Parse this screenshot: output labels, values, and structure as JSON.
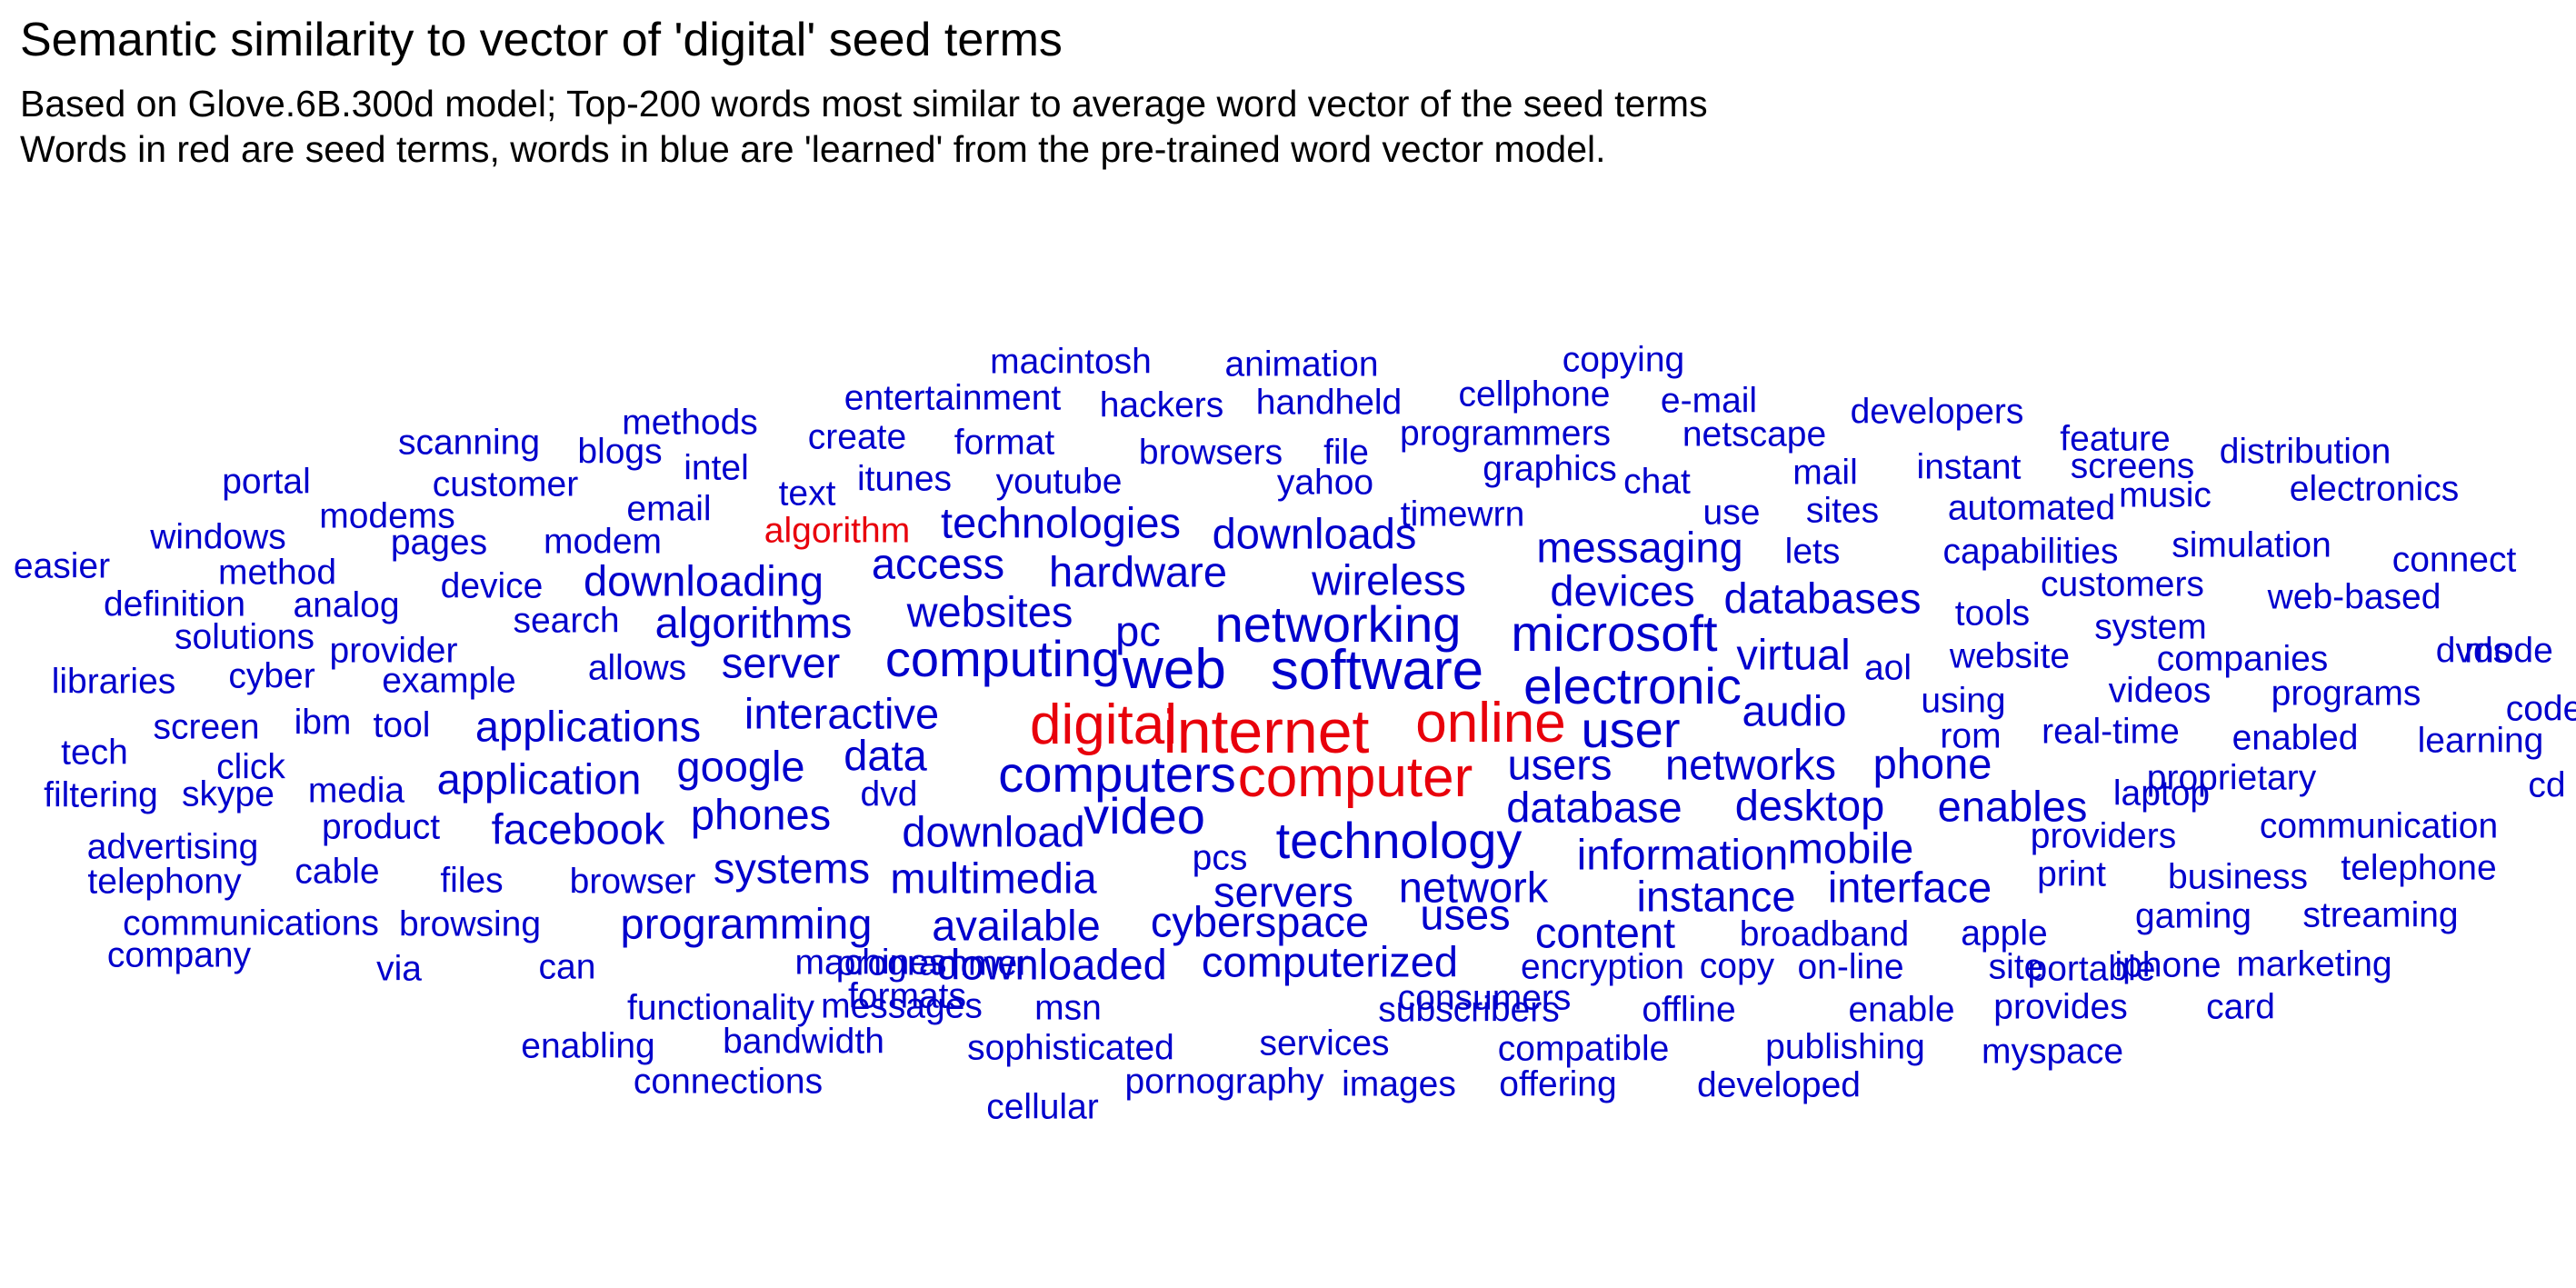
{
  "chart_data": {
    "type": "wordcloud",
    "title": "Semantic similarity to vector of 'digital' seed terms",
    "subtitle_lines": [
      "Based on Glove.6B.300d model; Top-200 words most similar to average word vector of the seed terms",
      "Words in red are seed terms, words in blue are 'learned' from the pre-trained word vector model."
    ],
    "colors": {
      "seed": "#e8000b",
      "learned": "#0000cc"
    },
    "words": [
      {
        "text": "macintosh",
        "weight": 2,
        "seed": false
      },
      {
        "text": "animation",
        "weight": 2,
        "seed": false
      },
      {
        "text": "copying",
        "weight": 2,
        "seed": false
      },
      {
        "text": "entertainment",
        "weight": 2,
        "seed": false
      },
      {
        "text": "hackers",
        "weight": 2,
        "seed": false
      },
      {
        "text": "handheld",
        "weight": 2,
        "seed": false
      },
      {
        "text": "cellphone",
        "weight": 2,
        "seed": false
      },
      {
        "text": "e-mail",
        "weight": 2,
        "seed": false
      },
      {
        "text": "developers",
        "weight": 2,
        "seed": false
      },
      {
        "text": "methods",
        "weight": 2,
        "seed": false
      },
      {
        "text": "scanning",
        "weight": 2,
        "seed": false
      },
      {
        "text": "blogs",
        "weight": 2,
        "seed": false
      },
      {
        "text": "create",
        "weight": 2,
        "seed": false
      },
      {
        "text": "format",
        "weight": 2,
        "seed": false
      },
      {
        "text": "browsers",
        "weight": 2,
        "seed": false
      },
      {
        "text": "file",
        "weight": 2,
        "seed": false
      },
      {
        "text": "programmers",
        "weight": 2,
        "seed": false
      },
      {
        "text": "netscape",
        "weight": 2,
        "seed": false
      },
      {
        "text": "feature",
        "weight": 2,
        "seed": false
      },
      {
        "text": "distribution",
        "weight": 2,
        "seed": false
      },
      {
        "text": "intel",
        "weight": 2,
        "seed": false
      },
      {
        "text": "instant",
        "weight": 2,
        "seed": false
      },
      {
        "text": "screens",
        "weight": 2,
        "seed": false
      },
      {
        "text": "graphics",
        "weight": 2,
        "seed": false
      },
      {
        "text": "mail",
        "weight": 2,
        "seed": false
      },
      {
        "text": "portal",
        "weight": 2,
        "seed": false
      },
      {
        "text": "customer",
        "weight": 2,
        "seed": false
      },
      {
        "text": "itunes",
        "weight": 2,
        "seed": false
      },
      {
        "text": "youtube",
        "weight": 2,
        "seed": false
      },
      {
        "text": "yahoo",
        "weight": 2,
        "seed": false
      },
      {
        "text": "chat",
        "weight": 2,
        "seed": false
      },
      {
        "text": "music",
        "weight": 2,
        "seed": false
      },
      {
        "text": "electronics",
        "weight": 2,
        "seed": false
      },
      {
        "text": "text",
        "weight": 2,
        "seed": false
      },
      {
        "text": "email",
        "weight": 2,
        "seed": false
      },
      {
        "text": "modems",
        "weight": 2,
        "seed": false
      },
      {
        "text": "use",
        "weight": 2,
        "seed": false
      },
      {
        "text": "sites",
        "weight": 2,
        "seed": false
      },
      {
        "text": "automated",
        "weight": 2,
        "seed": false
      },
      {
        "text": "timewrn",
        "weight": 2,
        "seed": false
      },
      {
        "text": "windows",
        "weight": 2,
        "seed": false
      },
      {
        "text": "algorithm",
        "weight": 2,
        "seed": true
      },
      {
        "text": "technologies",
        "weight": 3,
        "seed": false
      },
      {
        "text": "downloads",
        "weight": 3,
        "seed": false
      },
      {
        "text": "pages",
        "weight": 2,
        "seed": false
      },
      {
        "text": "modem",
        "weight": 2,
        "seed": false
      },
      {
        "text": "simulation",
        "weight": 2,
        "seed": false
      },
      {
        "text": "messaging",
        "weight": 3,
        "seed": false
      },
      {
        "text": "lets",
        "weight": 2,
        "seed": false
      },
      {
        "text": "capabilities",
        "weight": 2,
        "seed": false
      },
      {
        "text": "easier",
        "weight": 2,
        "seed": false
      },
      {
        "text": "connect",
        "weight": 2,
        "seed": false
      },
      {
        "text": "method",
        "weight": 2,
        "seed": false
      },
      {
        "text": "access",
        "weight": 3,
        "seed": false
      },
      {
        "text": "hardware",
        "weight": 3,
        "seed": false
      },
      {
        "text": "wireless",
        "weight": 3,
        "seed": false
      },
      {
        "text": "customers",
        "weight": 2,
        "seed": false
      },
      {
        "text": "downloading",
        "weight": 3,
        "seed": false
      },
      {
        "text": "device",
        "weight": 2,
        "seed": false
      },
      {
        "text": "devices",
        "weight": 3,
        "seed": false
      },
      {
        "text": "databases",
        "weight": 3,
        "seed": false
      },
      {
        "text": "web-based",
        "weight": 2,
        "seed": false
      },
      {
        "text": "definition",
        "weight": 2,
        "seed": false
      },
      {
        "text": "analog",
        "weight": 2,
        "seed": false
      },
      {
        "text": "tools",
        "weight": 2,
        "seed": false
      },
      {
        "text": "websites",
        "weight": 3,
        "seed": false
      },
      {
        "text": "search",
        "weight": 2,
        "seed": false
      },
      {
        "text": "algorithms",
        "weight": 3,
        "seed": false
      },
      {
        "text": "system",
        "weight": 2,
        "seed": false
      },
      {
        "text": "solutions",
        "weight": 2,
        "seed": false
      },
      {
        "text": "networking",
        "weight": 4,
        "seed": false
      },
      {
        "text": "pc",
        "weight": 3,
        "seed": false
      },
      {
        "text": "microsoft",
        "weight": 4,
        "seed": false
      },
      {
        "text": "provider",
        "weight": 2,
        "seed": false
      },
      {
        "text": "virtual",
        "weight": 3,
        "seed": false
      },
      {
        "text": "dvds",
        "weight": 2,
        "seed": false
      },
      {
        "text": "mode",
        "weight": 2,
        "seed": false
      },
      {
        "text": "computing",
        "weight": 4,
        "seed": false
      },
      {
        "text": "website",
        "weight": 2,
        "seed": false
      },
      {
        "text": "companies",
        "weight": 2,
        "seed": false
      },
      {
        "text": "libraries",
        "weight": 2,
        "seed": false
      },
      {
        "text": "cyber",
        "weight": 2,
        "seed": false
      },
      {
        "text": "allows",
        "weight": 2,
        "seed": false
      },
      {
        "text": "server",
        "weight": 3,
        "seed": false
      },
      {
        "text": "web",
        "weight": 5,
        "seed": false
      },
      {
        "text": "software",
        "weight": 5,
        "seed": false
      },
      {
        "text": "aol",
        "weight": 2,
        "seed": false
      },
      {
        "text": "example",
        "weight": 2,
        "seed": false
      },
      {
        "text": "programs",
        "weight": 2,
        "seed": false
      },
      {
        "text": "electronic",
        "weight": 4,
        "seed": false
      },
      {
        "text": "videos",
        "weight": 2,
        "seed": false
      },
      {
        "text": "using",
        "weight": 2,
        "seed": false
      },
      {
        "text": "code",
        "weight": 2,
        "seed": false
      },
      {
        "text": "interactive",
        "weight": 3,
        "seed": false
      },
      {
        "text": "audio",
        "weight": 3,
        "seed": false
      },
      {
        "text": "ibm",
        "weight": 2,
        "seed": false
      },
      {
        "text": "tool",
        "weight": 2,
        "seed": false
      },
      {
        "text": "screen",
        "weight": 2,
        "seed": false
      },
      {
        "text": "applications",
        "weight": 3,
        "seed": false
      },
      {
        "text": "digital",
        "weight": 5,
        "seed": true
      },
      {
        "text": "internet",
        "weight": 6,
        "seed": true
      },
      {
        "text": "online",
        "weight": 5,
        "seed": true
      },
      {
        "text": "user",
        "weight": 4,
        "seed": false
      },
      {
        "text": "rom",
        "weight": 2,
        "seed": false
      },
      {
        "text": "real-time",
        "weight": 2,
        "seed": false
      },
      {
        "text": "enabled",
        "weight": 2,
        "seed": false
      },
      {
        "text": "learning",
        "weight": 2,
        "seed": false
      },
      {
        "text": "tech",
        "weight": 2,
        "seed": false
      },
      {
        "text": "data",
        "weight": 3,
        "seed": false
      },
      {
        "text": "google",
        "weight": 3,
        "seed": false
      },
      {
        "text": "click",
        "weight": 2,
        "seed": false
      },
      {
        "text": "users",
        "weight": 3,
        "seed": false
      },
      {
        "text": "networks",
        "weight": 3,
        "seed": false
      },
      {
        "text": "phone",
        "weight": 3,
        "seed": false
      },
      {
        "text": "media",
        "weight": 2,
        "seed": false
      },
      {
        "text": "application",
        "weight": 3,
        "seed": false
      },
      {
        "text": "computers",
        "weight": 4,
        "seed": false
      },
      {
        "text": "computer",
        "weight": 5,
        "seed": true
      },
      {
        "text": "proprietary",
        "weight": 2,
        "seed": false
      },
      {
        "text": "cd",
        "weight": 2,
        "seed": false
      },
      {
        "text": "filtering",
        "weight": 2,
        "seed": false
      },
      {
        "text": "skype",
        "weight": 2,
        "seed": false
      },
      {
        "text": "dvd",
        "weight": 2,
        "seed": false
      },
      {
        "text": "laptop",
        "weight": 2,
        "seed": false
      },
      {
        "text": "database",
        "weight": 3,
        "seed": false
      },
      {
        "text": "desktop",
        "weight": 3,
        "seed": false
      },
      {
        "text": "enables",
        "weight": 3,
        "seed": false
      },
      {
        "text": "phones",
        "weight": 3,
        "seed": false
      },
      {
        "text": "video",
        "weight": 4,
        "seed": false
      },
      {
        "text": "product",
        "weight": 2,
        "seed": false
      },
      {
        "text": "facebook",
        "weight": 3,
        "seed": false
      },
      {
        "text": "download",
        "weight": 3,
        "seed": false
      },
      {
        "text": "communication",
        "weight": 2,
        "seed": false
      },
      {
        "text": "advertising",
        "weight": 2,
        "seed": false
      },
      {
        "text": "technology",
        "weight": 4,
        "seed": false
      },
      {
        "text": "providers",
        "weight": 2,
        "seed": false
      },
      {
        "text": "information",
        "weight": 3,
        "seed": false
      },
      {
        "text": "mobile",
        "weight": 3,
        "seed": false
      },
      {
        "text": "pcs",
        "weight": 2,
        "seed": false
      },
      {
        "text": "systems",
        "weight": 3,
        "seed": false
      },
      {
        "text": "cable",
        "weight": 2,
        "seed": false
      },
      {
        "text": "files",
        "weight": 2,
        "seed": false
      },
      {
        "text": "browser",
        "weight": 2,
        "seed": false
      },
      {
        "text": "print",
        "weight": 2,
        "seed": false
      },
      {
        "text": "business",
        "weight": 2,
        "seed": false
      },
      {
        "text": "telephone",
        "weight": 2,
        "seed": false
      },
      {
        "text": "telephony",
        "weight": 2,
        "seed": false
      },
      {
        "text": "multimedia",
        "weight": 3,
        "seed": false
      },
      {
        "text": "network",
        "weight": 3,
        "seed": false
      },
      {
        "text": "servers",
        "weight": 3,
        "seed": false
      },
      {
        "text": "instance",
        "weight": 3,
        "seed": false
      },
      {
        "text": "interface",
        "weight": 3,
        "seed": false
      },
      {
        "text": "gaming",
        "weight": 2,
        "seed": false
      },
      {
        "text": "streaming",
        "weight": 2,
        "seed": false
      },
      {
        "text": "communications",
        "weight": 2,
        "seed": false
      },
      {
        "text": "browsing",
        "weight": 2,
        "seed": false
      },
      {
        "text": "programming",
        "weight": 3,
        "seed": false
      },
      {
        "text": "available",
        "weight": 3,
        "seed": false
      },
      {
        "text": "cyberspace",
        "weight": 3,
        "seed": false
      },
      {
        "text": "uses",
        "weight": 3,
        "seed": false
      },
      {
        "text": "content",
        "weight": 3,
        "seed": false
      },
      {
        "text": "broadband",
        "weight": 2,
        "seed": false
      },
      {
        "text": "apple",
        "weight": 2,
        "seed": false
      },
      {
        "text": "company",
        "weight": 2,
        "seed": false
      },
      {
        "text": "computerized",
        "weight": 3,
        "seed": false
      },
      {
        "text": "machines",
        "weight": 2,
        "seed": false
      },
      {
        "text": "downloaded",
        "weight": 3,
        "seed": false
      },
      {
        "text": "encryption",
        "weight": 2,
        "seed": false
      },
      {
        "text": "copy",
        "weight": 2,
        "seed": false
      },
      {
        "text": "on-line",
        "weight": 2,
        "seed": false
      },
      {
        "text": "site",
        "weight": 2,
        "seed": false
      },
      {
        "text": "portable",
        "weight": 2,
        "seed": false
      },
      {
        "text": "iphone",
        "weight": 2,
        "seed": false
      },
      {
        "text": "marketing",
        "weight": 2,
        "seed": false
      },
      {
        "text": "programmer",
        "weight": 2,
        "seed": false
      },
      {
        "text": "via",
        "weight": 2,
        "seed": false
      },
      {
        "text": "can",
        "weight": 2,
        "seed": false
      },
      {
        "text": "formats",
        "weight": 2,
        "seed": false
      },
      {
        "text": "consumers",
        "weight": 2,
        "seed": false
      },
      {
        "text": "messages",
        "weight": 2,
        "seed": false
      },
      {
        "text": "functionality",
        "weight": 2,
        "seed": false
      },
      {
        "text": "msn",
        "weight": 2,
        "seed": false
      },
      {
        "text": "subscribers",
        "weight": 2,
        "seed": false
      },
      {
        "text": "offline",
        "weight": 2,
        "seed": false
      },
      {
        "text": "enable",
        "weight": 2,
        "seed": false
      },
      {
        "text": "provides",
        "weight": 2,
        "seed": false
      },
      {
        "text": "card",
        "weight": 2,
        "seed": false
      },
      {
        "text": "enabling",
        "weight": 2,
        "seed": false
      },
      {
        "text": "bandwidth",
        "weight": 2,
        "seed": false
      },
      {
        "text": "sophisticated",
        "weight": 2,
        "seed": false
      },
      {
        "text": "services",
        "weight": 2,
        "seed": false
      },
      {
        "text": "compatible",
        "weight": 2,
        "seed": false
      },
      {
        "text": "publishing",
        "weight": 2,
        "seed": false
      },
      {
        "text": "myspace",
        "weight": 2,
        "seed": false
      },
      {
        "text": "connections",
        "weight": 2,
        "seed": false
      },
      {
        "text": "pornography",
        "weight": 2,
        "seed": false
      },
      {
        "text": "images",
        "weight": 2,
        "seed": false
      },
      {
        "text": "offering",
        "weight": 2,
        "seed": false
      },
      {
        "text": "developed",
        "weight": 2,
        "seed": false
      },
      {
        "text": "cellular",
        "weight": 2,
        "seed": false
      }
    ]
  }
}
